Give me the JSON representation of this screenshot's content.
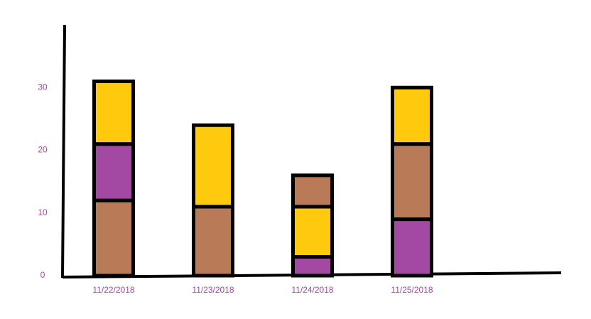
{
  "chart_data": {
    "type": "stacked-bar",
    "categories": [
      "11/22/2018",
      "11/23/2018",
      "11/24/2018",
      "11/25/2018"
    ],
    "stacks": [
      [
        {
          "color": "#b97a57",
          "value": 12
        },
        {
          "color": "#a349a4",
          "value": 9
        },
        {
          "color": "#ffc90e",
          "value": 10
        }
      ],
      [
        {
          "color": "#b97a57",
          "value": 11
        },
        {
          "color": "#ffc90e",
          "value": 13
        }
      ],
      [
        {
          "color": "#a349a4",
          "value": 3
        },
        {
          "color": "#ffc90e",
          "value": 8
        },
        {
          "color": "#b97a57",
          "value": 5
        }
      ],
      [
        {
          "color": "#a349a4",
          "value": 9
        },
        {
          "color": "#b97a57",
          "value": 12
        },
        {
          "color": "#ffc90e",
          "value": 9
        }
      ]
    ],
    "ylim": [
      0,
      40
    ],
    "yticks": [
      0,
      10,
      20,
      30
    ]
  }
}
